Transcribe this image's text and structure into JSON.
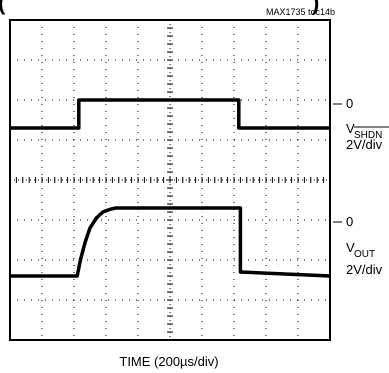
{
  "chart_data": {
    "type": "line",
    "title": "",
    "figure_id": "MAX1735 toc14b",
    "xlabel": "TIME (200µs/div)",
    "grid": true,
    "x_divisions": 10,
    "y_divisions": 8,
    "xlim_div": [
      0,
      10
    ],
    "ylim_div": [
      0,
      8
    ],
    "series": [
      {
        "name": "V_SHDN",
        "unit_per_div": "2V/div",
        "zero_marker_div": 6,
        "x_div": [
          0,
          2.15,
          2.15,
          7.15,
          7.15,
          10
        ],
        "y_div": [
          5.3,
          5.3,
          6.0,
          6.0,
          5.3,
          5.3
        ]
      },
      {
        "name": "V_OUT",
        "unit_per_div": "2V/div",
        "zero_marker_div": 3.3,
        "x_div": [
          0,
          2.1,
          2.2,
          2.35,
          2.5,
          2.7,
          2.9,
          3.1,
          3.3,
          3.6,
          7.2,
          7.2,
          10
        ],
        "y_div": [
          1.6,
          1.6,
          2.0,
          2.45,
          2.8,
          3.05,
          3.2,
          3.26,
          3.3,
          3.3,
          3.3,
          1.7,
          1.6
        ]
      }
    ]
  },
  "labels": {
    "header_fragment": "(",
    "header_fragment_right": ")",
    "ref_top_zero": "0",
    "ref_top_v": "V",
    "ref_top_sub": "SHDN",
    "ref_top_scale": "2V/div",
    "ref_bot_zero": "0",
    "ref_bot_v": "V",
    "ref_bot_sub": "OUT",
    "ref_bot_scale": "2V/div"
  }
}
